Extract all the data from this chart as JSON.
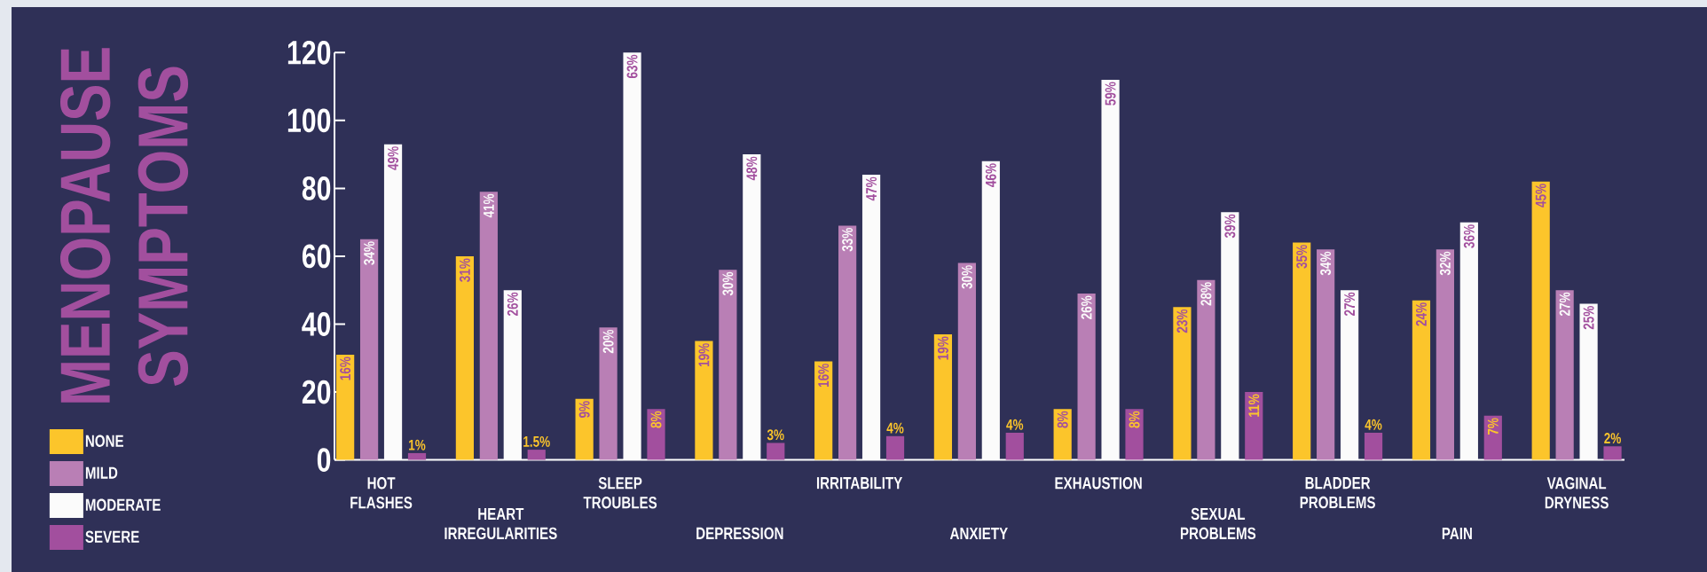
{
  "chart_data": {
    "type": "bar",
    "title": "MENOPAUSE SYMPTOMS",
    "categories": [
      "HOT FLASHES",
      "HEART IRREGULARITIES",
      "SLEEP TROUBLES",
      "DEPRESSION",
      "IRRITABILITY",
      "ANXIETY",
      "EXHAUSTION",
      "SEXUAL PROBLEMS",
      "BLADDER PROBLEMS",
      "PAIN",
      "VAGINAL DRYNESS"
    ],
    "series": [
      {
        "name": "NONE",
        "color": "#fcc52b",
        "values": [
          31,
          60,
          18,
          35,
          29,
          37,
          15,
          45,
          64,
          47,
          82
        ]
      },
      {
        "name": "MILD",
        "color": "#b97fb5",
        "values": [
          65,
          79,
          39,
          56,
          69,
          58,
          49,
          53,
          62,
          62,
          50
        ]
      },
      {
        "name": "MODERATE",
        "color": "#fbfbfb",
        "values": [
          93,
          50,
          120,
          90,
          84,
          88,
          112,
          73,
          50,
          70,
          46
        ]
      },
      {
        "name": "SEVERE",
        "color": "#a24f9e",
        "values": [
          2,
          3,
          15,
          5,
          7,
          8,
          15,
          20,
          8,
          13,
          4
        ]
      }
    ],
    "annotations": [
      {
        "text": "16%",
        "x": "HOT FLASHES",
        "y": 31
      },
      {
        "text": "34%",
        "x": "HOT FLASHES",
        "y": 65
      },
      {
        "text": "49%",
        "x": "HOT FLASHES",
        "y": 93
      },
      {
        "text": "1%",
        "x": "HOT FLASHES",
        "y": 2
      },
      {
        "text": "31%",
        "x": "HEART IRREGULARITIES",
        "y": 60
      },
      {
        "text": "41%",
        "x": "HEART IRREGULARITIES",
        "y": 79
      },
      {
        "text": "26%",
        "x": "HEART IRREGULARITIES",
        "y": 50
      },
      {
        "text": "1.5%",
        "x": "HEART IRREGULARITIES",
        "y": 3
      },
      {
        "text": "9%",
        "x": "SLEEP TROUBLES",
        "y": 18
      },
      {
        "text": "20%",
        "x": "SLEEP TROUBLES",
        "y": 39
      },
      {
        "text": "63%",
        "x": "SLEEP TROUBLES",
        "y": 120
      },
      {
        "text": "8%",
        "x": "SLEEP TROUBLES",
        "y": 15
      },
      {
        "text": "19%",
        "x": "DEPRESSION",
        "y": 35
      },
      {
        "text": "30%",
        "x": "DEPRESSION",
        "y": 56
      },
      {
        "text": "48%",
        "x": "DEPRESSION",
        "y": 90
      },
      {
        "text": "3%",
        "x": "DEPRESSION",
        "y": 5
      },
      {
        "text": "16%",
        "x": "IRRITABILITY",
        "y": 29
      },
      {
        "text": "33%",
        "x": "IRRITABILITY",
        "y": 69
      },
      {
        "text": "47%",
        "x": "IRRITABILITY",
        "y": 84
      },
      {
        "text": "4%",
        "x": "IRRITABILITY",
        "y": 7
      },
      {
        "text": "19%",
        "x": "ANXIETY",
        "y": 37
      },
      {
        "text": "30%",
        "x": "ANXIETY",
        "y": 58
      },
      {
        "text": "46%",
        "x": "ANXIETY",
        "y": 88
      },
      {
        "text": "4%",
        "x": "ANXIETY",
        "y": 8
      },
      {
        "text": "8%",
        "x": "EXHAUSTION",
        "y": 15
      },
      {
        "text": "26%",
        "x": "EXHAUSTION",
        "y": 49
      },
      {
        "text": "59%",
        "x": "EXHAUSTION",
        "y": 112
      },
      {
        "text": "8%",
        "x": "EXHAUSTION",
        "y": 15
      },
      {
        "text": "23%",
        "x": "SEXUAL PROBLEMS",
        "y": 45
      },
      {
        "text": "28%",
        "x": "SEXUAL PROBLEMS",
        "y": 53
      },
      {
        "text": "39%",
        "x": "SEXUAL PROBLEMS",
        "y": 73
      },
      {
        "text": "11%",
        "x": "SEXUAL PROBLEMS",
        "y": 20
      },
      "35%",
      {
        "text": "34%",
        "x": "BLADDER PROBLEMS",
        "y": 62
      },
      {
        "text": "27%",
        "x": "BLADDER PROBLEMS",
        "y": 50
      },
      {
        "text": "4%",
        "x": "BLADDER PROBLEMS",
        "y": 8
      },
      {
        "text": "24%",
        "x": "PAIN",
        "y": 47
      },
      {
        "text": "32%",
        "x": "PAIN",
        "y": 62
      },
      {
        "text": "36%",
        "x": "PAIN",
        "y": 70
      },
      {
        "text": "7%",
        "x": "PAIN",
        "y": 13
      },
      "45%",
      {
        "text": "27%",
        "x": "VAGINAL DRYNESS",
        "y": 50
      },
      {
        "text": "25%",
        "x": "VAGINAL DRYNESS",
        "y": 46
      },
      {
        "text": "2%",
        "x": "VAGINAL DRYNESS",
        "y": 4
      }
    ],
    "ylim": [
      0,
      120
    ],
    "yticks": [
      0,
      20,
      40,
      60,
      80,
      100,
      120
    ],
    "legend": "left",
    "grid": false
  }
}
